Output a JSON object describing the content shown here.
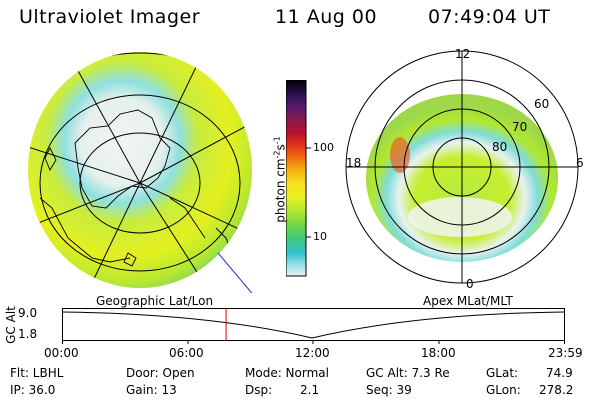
{
  "header": {
    "instrument": "Ultraviolet Imager",
    "date": "11 Aug 00",
    "time": "07:49:04 UT"
  },
  "colorbar": {
    "unit_label": "photon cm",
    "unit_sup1": "-2",
    "unit_mid": "s",
    "unit_sup2": "-1",
    "ticks": [
      "100",
      "10"
    ],
    "colors": [
      "#000000",
      "#2a1050",
      "#5c1a6e",
      "#8a1a4a",
      "#b8102a",
      "#e0301a",
      "#f07010",
      "#f8b010",
      "#f8e020",
      "#e8f020",
      "#b0e830",
      "#70d840",
      "#40c880",
      "#30c0c8",
      "#90e0e8",
      "#e8f0f0"
    ]
  },
  "geographic_panel": {
    "label": "Geographic Lat/Lon"
  },
  "polar_panel": {
    "label": "Apex MLat/MLT",
    "mlt_labels": {
      "top": "12",
      "left": "18",
      "right": "6",
      "bottom": "0"
    },
    "lat_labels": [
      "60",
      "70",
      "80"
    ]
  },
  "altitude_plot": {
    "axis_label": "GC Alt",
    "y_ticks": [
      "9.0",
      "1.8"
    ],
    "x_ticks": [
      "00:00",
      "06:00",
      "12:00",
      "18:00",
      "23:59"
    ],
    "marker_time_hours": 7.82,
    "marker_color": "#e00000"
  },
  "status": {
    "filter": "Flt: LBHL",
    "ip": "IP: 36.0",
    "door": "Door: Open",
    "gain": "Gain: 13",
    "mode": "Mode: Normal",
    "dsp_label": "Dsp:",
    "dsp_value": "2.1",
    "gc_alt": "GC Alt: 7.3 Re",
    "seq": "Seq: 39",
    "glat_label": "GLat:",
    "glat_value": "74.9",
    "glon_label": "GLon:",
    "glon_value": "278.2"
  }
}
